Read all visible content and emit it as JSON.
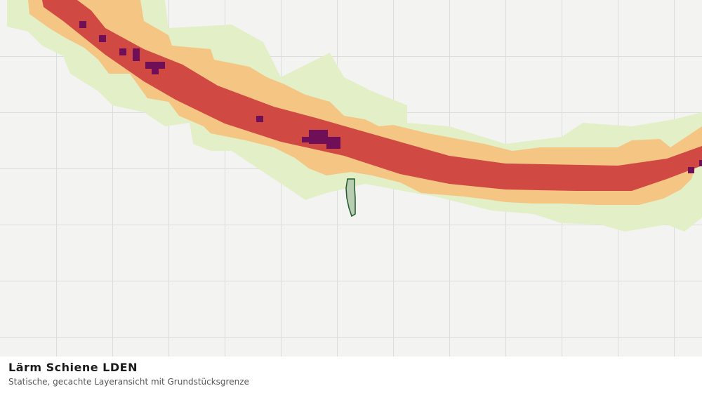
{
  "caption": {
    "title": "Lärm Schiene LDEN",
    "subtitle": "Statische, gecachte Layeransicht mit Grundstücksgrenze"
  }
}
